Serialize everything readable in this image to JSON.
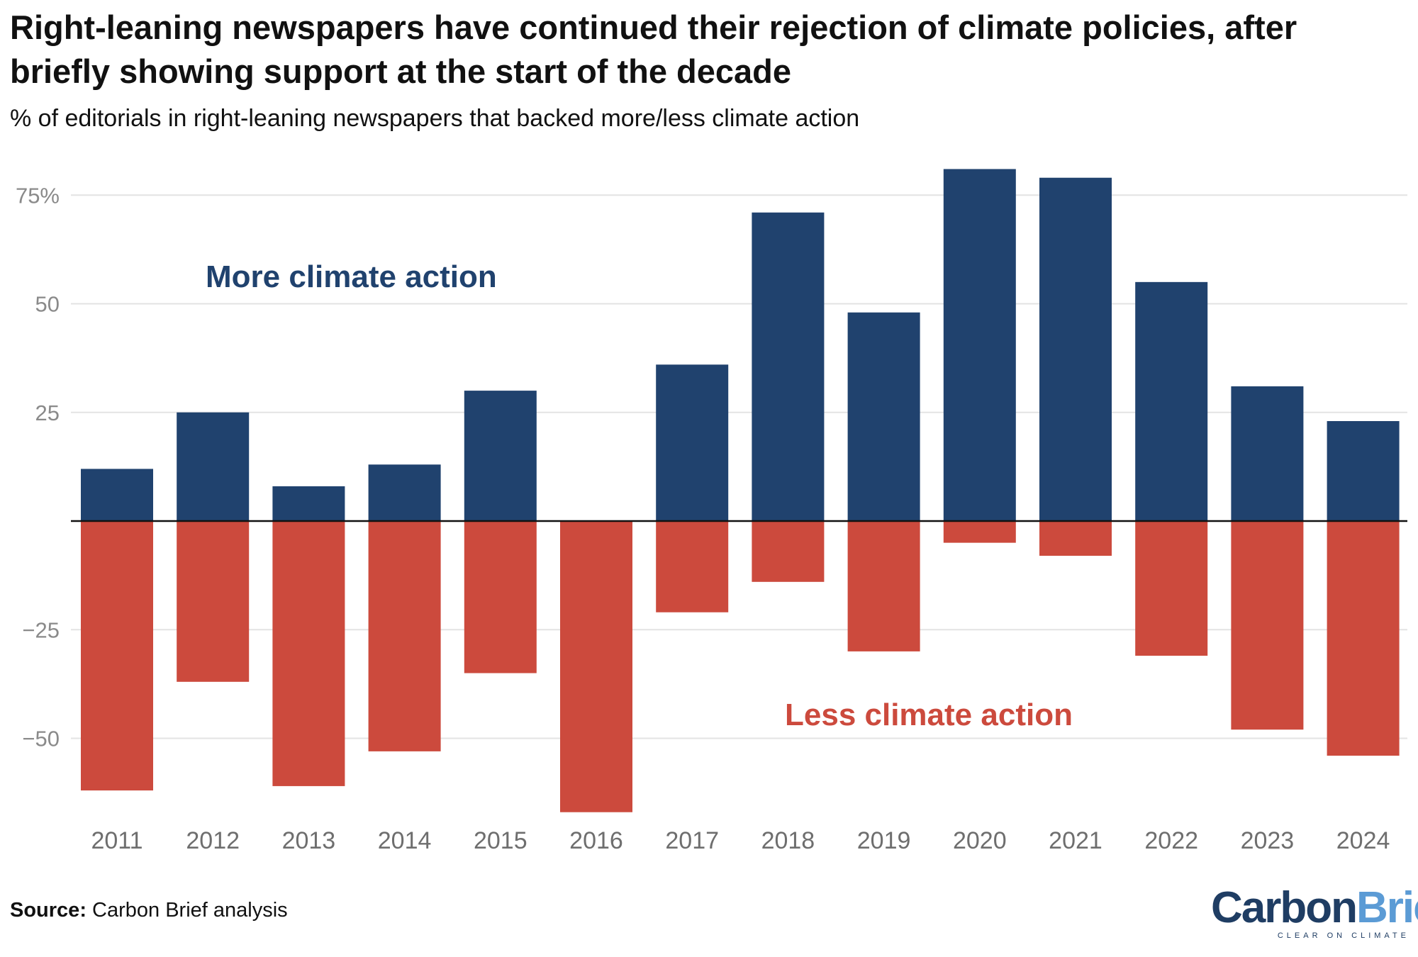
{
  "title": "Right-leaning newspapers have continued their rejection of climate policies, after briefly showing support at the start of the decade",
  "subtitle": "% of editorials in right-leaning newspapers that backed more/less climate action",
  "source": {
    "label": "Source:",
    "text": "Carbon Brief analysis"
  },
  "logo": {
    "carbon": "Carbon",
    "brief": "Brief",
    "tagline": "CLEAR ON CLIMATE"
  },
  "colors": {
    "more": "#20426e",
    "less": "#cc4a3d",
    "grid": "#e3e3e3",
    "zero": "#111111"
  },
  "chart_data": {
    "type": "bar",
    "title": "Right-leaning newspapers have continued their rejection of climate policies, after briefly showing support at the start of the decade",
    "ylabel": "% of editorials",
    "xlabel": "",
    "categories": [
      "2011",
      "2012",
      "2013",
      "2014",
      "2015",
      "2016",
      "2017",
      "2018",
      "2019",
      "2020",
      "2021",
      "2022",
      "2023",
      "2024"
    ],
    "series": [
      {
        "name": "More climate action",
        "values": [
          12,
          25,
          8,
          13,
          30,
          0,
          36,
          71,
          48,
          81,
          79,
          55,
          31,
          23
        ]
      },
      {
        "name": "Less climate action",
        "values": [
          -62,
          -37,
          -61,
          -53,
          -35,
          -67,
          -21,
          -14,
          -30,
          -5,
          -8,
          -31,
          -48,
          -54
        ]
      }
    ],
    "yticks": [
      75,
      50,
      25,
      -25,
      -50
    ],
    "ytick_labels": [
      "75%",
      "50",
      "25",
      "−25",
      "−50"
    ],
    "ylim": [
      -68,
      82
    ],
    "annotations": {
      "more": "More climate action",
      "less": "Less climate action"
    },
    "grid": true
  }
}
